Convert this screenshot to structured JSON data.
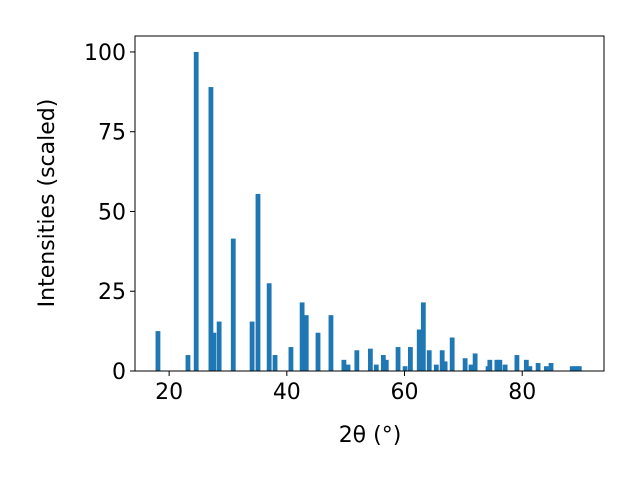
{
  "chart_data": {
    "type": "bar",
    "xlabel": "2θ (°)",
    "ylabel": "Intensities (scaled)",
    "x": [
      18.1,
      23.2,
      24.6,
      27.1,
      27.6,
      28.5,
      30.9,
      34.1,
      35.1,
      37.0,
      38.0,
      40.7,
      42.6,
      43.3,
      45.3,
      47.5,
      49.7,
      50.4,
      51.9,
      54.2,
      55.2,
      56.4,
      56.9,
      58.9,
      60.1,
      61.0,
      62.5,
      63.2,
      64.2,
      65.4,
      66.4,
      66.9,
      68.1,
      70.3,
      71.3,
      72.0,
      74.2,
      74.5,
      75.7,
      76.2,
      77.1,
      79.1,
      80.7,
      81.3,
      82.7,
      84.1,
      84.9,
      88.5,
      89.2,
      89.7
    ],
    "values": [
      12.5,
      5,
      100,
      89,
      12,
      15.5,
      41.5,
      15.5,
      55.5,
      27.5,
      5,
      7.5,
      21.5,
      17.5,
      12,
      17.5,
      3.5,
      2,
      6.5,
      7,
      2,
      5,
      3.5,
      7.5,
      1.5,
      7.5,
      13,
      21.5,
      6.5,
      2,
      6.5,
      3,
      10.5,
      4,
      2,
      5.5,
      1.5,
      3.5,
      3.5,
      3.5,
      2,
      5,
      3.5,
      1.5,
      2.5,
      1.5,
      2.5,
      1.5,
      1.5,
      1.5
    ],
    "color": "#1f77b4",
    "xlim": [
      14.2,
      93.9
    ],
    "xticks": [
      20,
      40,
      60,
      80
    ],
    "ylim": [
      0,
      105
    ],
    "yticks": [
      0,
      25,
      50,
      75,
      100
    ],
    "grid": false
  }
}
